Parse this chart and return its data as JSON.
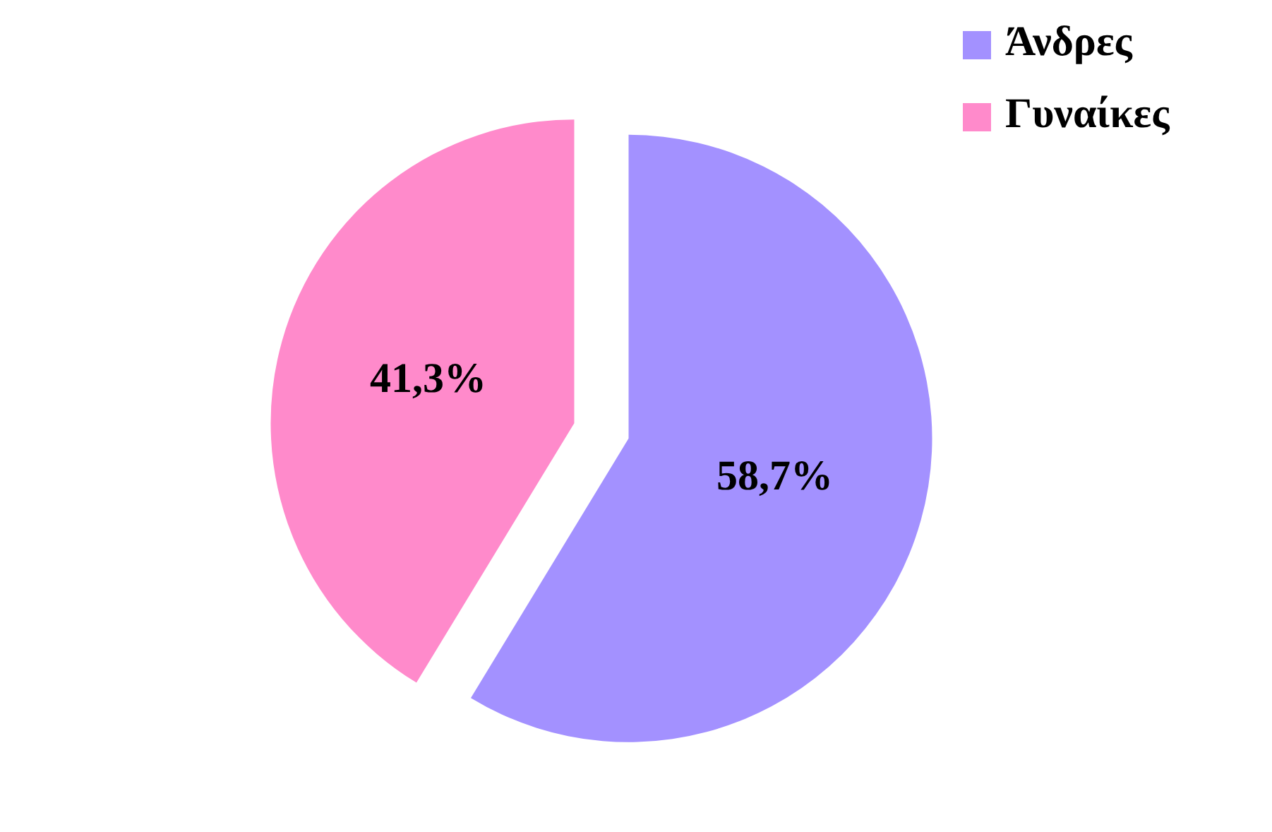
{
  "chart_data": {
    "type": "pie",
    "categories": [
      "Άνδρες",
      "Γυναίκες"
    ],
    "values": [
      58.7,
      41.3
    ],
    "colors": [
      "#a391ff",
      "#ff8acb"
    ],
    "value_labels": [
      "58,7%",
      "41,3%"
    ],
    "legend": "top right"
  }
}
